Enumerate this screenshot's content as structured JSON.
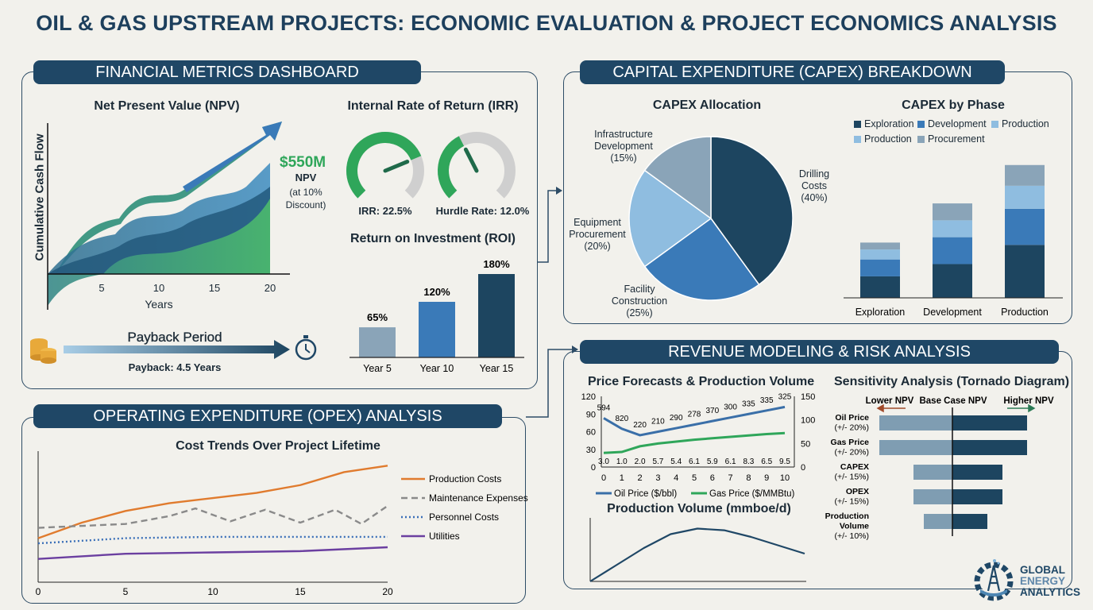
{
  "title": "OIL & GAS UPSTREAM PROJECTS: ECONOMIC EVALUATION & PROJECT ECONOMICS ANALYSIS",
  "colors": {
    "navy": "#1f4766",
    "dark_blue": "#1d4560",
    "mid_blue": "#3a7ab8",
    "light_blue": "#8fbde0",
    "gray_blue": "#8aa4b8",
    "green": "#2fa65a",
    "orange": "#e07b2e",
    "purple": "#6b3fa0"
  },
  "financial": {
    "header": "FINANCIAL METRICS DASHBOARD",
    "npv": {
      "title": "Net Present Value (NPV)",
      "ylabel": "Cumulative Cash Flow",
      "xlabel": "Years",
      "xticks": [
        "5",
        "10",
        "15",
        "20"
      ],
      "value": "$550M",
      "value_label": "NPV",
      "note": "(at 10%",
      "note2": "Discount)"
    },
    "irr": {
      "title": "Internal Rate of Return (IRR)",
      "irr_label": "IRR: 22.5%",
      "irr_value": 22.5,
      "hurdle_label": "Hurdle Rate: 12.0%",
      "hurdle_value": 12.0
    },
    "payback": {
      "title": "Payback Period",
      "label": "Payback: 4.5 Years",
      "icons": [
        "coins-icon",
        "stopwatch-icon"
      ]
    }
  },
  "capex": {
    "header": "CAPITAL EXPENDITURE (CAPEX) BREAKDOWN"
  },
  "opex": {
    "header": "OPERATING EXPENDITURE (OPEX) ANALYSIS"
  },
  "revenue": {
    "header": "REVENUE MODELING & RISK ANALYSIS"
  },
  "logo": {
    "line1": "GLOBAL",
    "line2": "ENERGY",
    "line3": "ANALYTICS"
  },
  "chart_data": [
    {
      "id": "roi",
      "type": "bar",
      "title": "Return on Investment (ROI)",
      "categories": [
        "Year 5",
        "Year 10",
        "Year 15"
      ],
      "values": [
        65,
        120,
        180
      ],
      "labels": [
        "65%",
        "120%",
        "180%"
      ],
      "colors": [
        "#8aa4b8",
        "#3a7ab8",
        "#1d4560"
      ]
    },
    {
      "id": "capex_alloc",
      "type": "pie",
      "title": "CAPEX Allocation",
      "slices": [
        {
          "label": "Drilling",
          "label2": "Costs",
          "pct": "(40%)",
          "value": 40,
          "color": "#1d4560"
        },
        {
          "label": "Facility",
          "label2": "Construction",
          "pct": "(25%)",
          "value": 25,
          "color": "#3a7ab8"
        },
        {
          "label": "Equipment",
          "label2": "Procurement",
          "pct": "(20%)",
          "value": 20,
          "color": "#8fbde0"
        },
        {
          "label": "Infrastructure",
          "label2": "Development",
          "pct": "(15%)",
          "value": 15,
          "color": "#8aa4b8"
        }
      ]
    },
    {
      "id": "capex_phase",
      "type": "bar",
      "stacked": true,
      "title": "CAPEX by Phase",
      "categories": [
        "Exploration",
        "Development",
        "Production"
      ],
      "legend": [
        "Exploration",
        "Development",
        "Production",
        "Production",
        "Procurement"
      ],
      "series": [
        {
          "name": "Exploration",
          "color": "#1d4560",
          "values": [
            28,
            44,
            69
          ]
        },
        {
          "name": "Development",
          "color": "#3a7ab8",
          "values": [
            22,
            35,
            47
          ]
        },
        {
          "name": "Production",
          "color": "#8fbde0",
          "values": [
            13,
            22,
            30
          ]
        },
        {
          "name": "Procurement",
          "color": "#8aa4b8",
          "values": [
            9,
            22,
            27
          ]
        }
      ],
      "ylim": [
        0,
        180
      ]
    },
    {
      "id": "opex",
      "type": "line",
      "title": "Cost Trends Over Project Lifetime",
      "xticks": [
        "0",
        "5",
        "10",
        "15",
        "20"
      ],
      "xlim": [
        0,
        20
      ],
      "ylim": [
        0,
        100
      ],
      "series": [
        {
          "name": "Production Costs",
          "color": "#e07b2e",
          "style": "solid",
          "x": [
            0,
            2.5,
            5,
            7.5,
            10,
            12.5,
            15,
            17.5,
            20
          ],
          "y": [
            34,
            46,
            55,
            61,
            65,
            69,
            75,
            85,
            90
          ]
        },
        {
          "name": "Maintenance Expenses",
          "color": "#8a8a8a",
          "style": "dashed",
          "x": [
            0,
            5,
            7.5,
            9,
            11,
            13,
            15,
            17,
            18.5,
            20
          ],
          "y": [
            42,
            45,
            51,
            57,
            47,
            56,
            46,
            56,
            45,
            59
          ]
        },
        {
          "name": "Personnel Costs",
          "color": "#3a6fb8",
          "style": "dotted",
          "x": [
            0,
            5,
            10,
            20
          ],
          "y": [
            30,
            34,
            35,
            35
          ]
        },
        {
          "name": "Utilities",
          "color": "#6b3fa0",
          "style": "solid",
          "x": [
            0,
            5,
            10,
            15,
            20
          ],
          "y": [
            18,
            22,
            23,
            24,
            27
          ]
        }
      ]
    },
    {
      "id": "price",
      "type": "line",
      "title": "Price Forecasts & Production Volume",
      "x": [
        0,
        1,
        2,
        3,
        4,
        5,
        6,
        7,
        8,
        9,
        10
      ],
      "yticks_left": [
        "0",
        "30",
        "60",
        "90",
        "120"
      ],
      "ylim_left": [
        0,
        120
      ],
      "yticks_right": [
        "0",
        "50",
        "100",
        "150"
      ],
      "ylim_right": [
        0,
        150
      ],
      "series": [
        {
          "name": "Oil Price ($/bbl)",
          "color": "#3a6fa8",
          "axis": "left",
          "y": [
            83,
            65,
            54,
            60,
            66,
            72,
            78,
            84,
            90,
            96,
            102
          ],
          "labels": [
            "594",
            "820",
            "220",
            "210",
            "290",
            "278",
            "370",
            "300",
            "335",
            "335",
            "325"
          ]
        },
        {
          "name": "Gas Price ($/MMBtu)",
          "color": "#2fa65a",
          "axis": "right",
          "y": [
            30,
            32,
            44,
            50,
            54,
            58,
            61,
            64,
            67,
            70,
            72
          ],
          "labels": [
            "3.0",
            "1.0",
            "2.0",
            "5.7",
            "5.4",
            "6.1",
            "5.9",
            "6.1",
            "8.3",
            "6.5",
            "9.5"
          ]
        }
      ]
    },
    {
      "id": "volume",
      "type": "line",
      "title": "Production Volume (mmboe/d)",
      "y": [
        0,
        30,
        60,
        85,
        95,
        92,
        80,
        65,
        50
      ]
    },
    {
      "id": "tornado",
      "type": "bar",
      "orientation": "horizontal",
      "title": "Sensitivity Analysis (Tornado Diagram)",
      "left_label": "Lower NPV",
      "center_label": "Base Case NPV",
      "right_label": "Higher NPV",
      "rows": [
        {
          "label": "Oil Price",
          "range": "(+/- 20%)",
          "low": -92,
          "high": 94
        },
        {
          "label": "Gas Price",
          "range": "(+/- 20%)",
          "low": -92,
          "high": 94
        },
        {
          "label": "CAPEX",
          "range": "(+/- 15%)",
          "low": -49,
          "high": 63
        },
        {
          "label": "OPEX",
          "range": "(+/- 15%)",
          "low": -49,
          "high": 63
        },
        {
          "label": "Production",
          "label2": "Volume",
          "range": "(+/- 10%)",
          "low": -36,
          "high": 44
        }
      ]
    }
  ]
}
